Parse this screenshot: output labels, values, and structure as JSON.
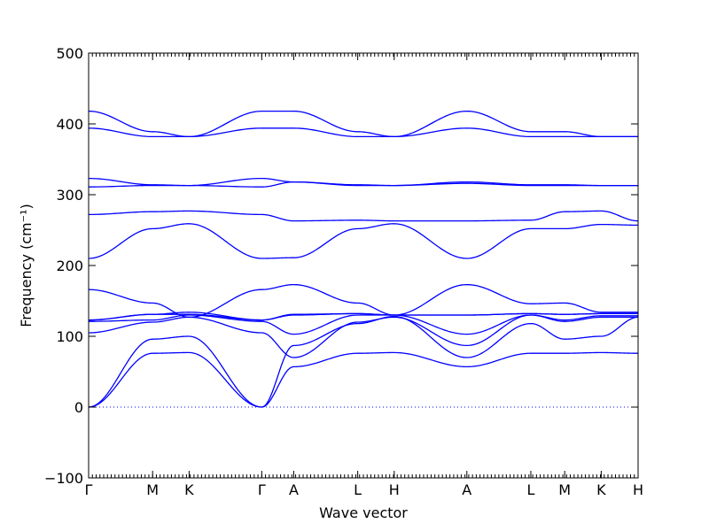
{
  "chart_data": {
    "type": "line",
    "xlabel": "Wave vector",
    "ylabel": "Frequency (cm⁻¹)",
    "ylim": [
      -100,
      500
    ],
    "yticks": [
      -100,
      0,
      100,
      200,
      300,
      400,
      500
    ],
    "zero_line": true,
    "colors": {
      "band": "#0000ff"
    },
    "xlim": [
      0,
      14.6
    ],
    "kpoints": [
      {
        "label": "Γ",
        "x": 0
      },
      {
        "label": "M",
        "x": 1.7
      },
      {
        "label": "K",
        "x": 2.67
      },
      {
        "label": "Γ",
        "x": 4.6
      },
      {
        "label": "A",
        "x": 5.45
      },
      {
        "label": "L",
        "x": 7.15
      },
      {
        "label": "H",
        "x": 8.12
      },
      {
        "label": "A",
        "x": 10.05
      },
      {
        "label": "L",
        "x": 11.75
      },
      {
        "label": "M",
        "x": 12.65
      },
      {
        "label": "K",
        "x": 13.62
      },
      {
        "label": "H",
        "x": 14.6
      }
    ],
    "bands": [
      {
        "y": [
          0,
          76,
          77,
          0,
          57,
          76,
          77,
          57,
          76,
          76,
          77,
          76
        ]
      },
      {
        "y": [
          0,
          96,
          100,
          0,
          87,
          118,
          128,
          70,
          118,
          96,
          100,
          127
        ]
      },
      {
        "y": [
          105,
          120,
          127,
          105,
          70,
          120,
          127,
          87,
          130,
          121,
          127,
          127
        ]
      },
      {
        "y": [
          121,
          123,
          130,
          121,
          103,
          130,
          130,
          103,
          130,
          123,
          129,
          129
        ]
      },
      {
        "y": [
          123,
          131,
          131,
          123,
          130,
          132,
          130,
          130,
          132,
          131,
          132,
          132
        ]
      },
      {
        "y": [
          123,
          131,
          134,
          123,
          131,
          132,
          130,
          130,
          132,
          131,
          132,
          132
        ]
      },
      {
        "y": [
          166,
          147,
          127,
          166,
          173,
          147,
          130,
          173,
          146,
          147,
          134,
          134
        ]
      },
      {
        "y": [
          210,
          252,
          259,
          210,
          211,
          252,
          259,
          210,
          252,
          252,
          258,
          257
        ]
      },
      {
        "y": [
          272,
          276,
          277,
          272,
          263,
          264,
          263,
          263,
          264,
          276,
          277,
          263
        ]
      },
      {
        "y": [
          311,
          313,
          313,
          311,
          318,
          313,
          313,
          316,
          313,
          313,
          313,
          313
        ]
      },
      {
        "y": [
          323,
          314,
          313,
          323,
          318,
          314,
          313,
          318,
          314,
          314,
          313,
          313
        ]
      },
      {
        "y": [
          394,
          382,
          382,
          394,
          394,
          382,
          382,
          394,
          382,
          382,
          382,
          382
        ]
      },
      {
        "y": [
          418,
          389,
          382,
          418,
          418,
          389,
          382,
          418,
          389,
          389,
          382,
          382
        ]
      }
    ]
  }
}
